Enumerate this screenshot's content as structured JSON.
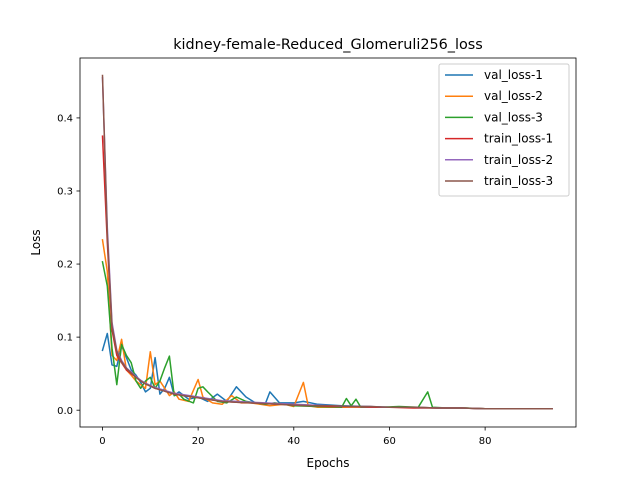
{
  "chart_data": {
    "type": "line",
    "title": "kidney-female-Reduced_Glomeruli256_loss",
    "xlabel": "Epochs",
    "ylabel": "Loss",
    "xlim": [
      -4.7,
      99
    ],
    "ylim": [
      -0.023,
      0.482
    ],
    "xticks": [
      0,
      20,
      40,
      60,
      80
    ],
    "yticks": [
      0.0,
      0.1,
      0.2,
      0.3,
      0.4
    ],
    "xtick_labels": [
      "0",
      "20",
      "40",
      "60",
      "80"
    ],
    "ytick_labels": [
      "0.0",
      "0.1",
      "0.2",
      "0.3",
      "0.4"
    ],
    "legend_position": "upper right",
    "grid": false,
    "series": [
      {
        "name": "val_loss-1",
        "color": "#1f77b4",
        "points": [
          [
            0,
            0.082
          ],
          [
            1,
            0.105
          ],
          [
            2,
            0.062
          ],
          [
            3,
            0.06
          ],
          [
            4,
            0.088
          ],
          [
            5,
            0.072
          ],
          [
            6,
            0.055
          ],
          [
            7,
            0.048
          ],
          [
            8,
            0.038
          ],
          [
            9,
            0.025
          ],
          [
            10,
            0.03
          ],
          [
            11,
            0.072
          ],
          [
            12,
            0.022
          ],
          [
            13,
            0.03
          ],
          [
            14,
            0.045
          ],
          [
            15,
            0.02
          ],
          [
            16,
            0.025
          ],
          [
            18,
            0.015
          ],
          [
            20,
            0.018
          ],
          [
            22,
            0.012
          ],
          [
            24,
            0.022
          ],
          [
            26,
            0.012
          ],
          [
            28,
            0.032
          ],
          [
            30,
            0.018
          ],
          [
            32,
            0.01
          ],
          [
            34,
            0.008
          ],
          [
            35,
            0.025
          ],
          [
            37,
            0.01
          ],
          [
            40,
            0.01
          ],
          [
            42,
            0.012
          ],
          [
            45,
            0.008
          ],
          [
            50,
            0.006
          ],
          [
            55,
            0.005
          ],
          [
            60,
            0.004
          ],
          [
            65,
            0.004
          ],
          [
            70,
            0.003
          ],
          [
            75,
            0.003
          ],
          [
            80,
            0.002
          ],
          [
            85,
            0.002
          ],
          [
            90,
            0.002
          ],
          [
            94,
            0.002
          ]
        ]
      },
      {
        "name": "val_loss-2",
        "color": "#ff7f0e",
        "points": [
          [
            0,
            0.233
          ],
          [
            1,
            0.19
          ],
          [
            2,
            0.075
          ],
          [
            3,
            0.068
          ],
          [
            4,
            0.097
          ],
          [
            5,
            0.055
          ],
          [
            6,
            0.048
          ],
          [
            7,
            0.04
          ],
          [
            8,
            0.035
          ],
          [
            9,
            0.03
          ],
          [
            10,
            0.08
          ],
          [
            11,
            0.035
          ],
          [
            12,
            0.04
          ],
          [
            13,
            0.03
          ],
          [
            14,
            0.02
          ],
          [
            15,
            0.025
          ],
          [
            16,
            0.015
          ],
          [
            18,
            0.012
          ],
          [
            20,
            0.042
          ],
          [
            21,
            0.018
          ],
          [
            23,
            0.01
          ],
          [
            25,
            0.008
          ],
          [
            27,
            0.02
          ],
          [
            29,
            0.01
          ],
          [
            31,
            0.01
          ],
          [
            33,
            0.008
          ],
          [
            35,
            0.006
          ],
          [
            38,
            0.008
          ],
          [
            40,
            0.005
          ],
          [
            42,
            0.038
          ],
          [
            43,
            0.006
          ],
          [
            45,
            0.004
          ],
          [
            50,
            0.004
          ],
          [
            55,
            0.004
          ],
          [
            60,
            0.004
          ],
          [
            65,
            0.004
          ],
          [
            70,
            0.003
          ],
          [
            75,
            0.003
          ],
          [
            80,
            0.002
          ],
          [
            85,
            0.002
          ],
          [
            90,
            0.002
          ],
          [
            94,
            0.002
          ]
        ]
      },
      {
        "name": "val_loss-3",
        "color": "#2ca02c",
        "points": [
          [
            0,
            0.203
          ],
          [
            1,
            0.17
          ],
          [
            2,
            0.085
          ],
          [
            3,
            0.035
          ],
          [
            4,
            0.09
          ],
          [
            5,
            0.075
          ],
          [
            6,
            0.065
          ],
          [
            7,
            0.04
          ],
          [
            8,
            0.03
          ],
          [
            9,
            0.04
          ],
          [
            10,
            0.045
          ],
          [
            11,
            0.03
          ],
          [
            12,
            0.04
          ],
          [
            13,
            0.058
          ],
          [
            14,
            0.074
          ],
          [
            15,
            0.02
          ],
          [
            16,
            0.022
          ],
          [
            17,
            0.015
          ],
          [
            19,
            0.01
          ],
          [
            20,
            0.03
          ],
          [
            21,
            0.032
          ],
          [
            22,
            0.025
          ],
          [
            24,
            0.012
          ],
          [
            26,
            0.01
          ],
          [
            28,
            0.018
          ],
          [
            30,
            0.012
          ],
          [
            32,
            0.01
          ],
          [
            34,
            0.008
          ],
          [
            36,
            0.01
          ],
          [
            40,
            0.006
          ],
          [
            45,
            0.005
          ],
          [
            50,
            0.004
          ],
          [
            51,
            0.016
          ],
          [
            52,
            0.006
          ],
          [
            53,
            0.015
          ],
          [
            54,
            0.004
          ],
          [
            58,
            0.004
          ],
          [
            62,
            0.005
          ],
          [
            66,
            0.004
          ],
          [
            68,
            0.025
          ],
          [
            69,
            0.004
          ],
          [
            72,
            0.003
          ],
          [
            76,
            0.003
          ],
          [
            80,
            0.002
          ],
          [
            85,
            0.002
          ],
          [
            90,
            0.002
          ],
          [
            94,
            0.002
          ]
        ]
      },
      {
        "name": "train_loss-1",
        "color": "#d62728",
        "points": [
          [
            0,
            0.375
          ],
          [
            1,
            0.23
          ],
          [
            2,
            0.11
          ],
          [
            3,
            0.075
          ],
          [
            4,
            0.065
          ],
          [
            5,
            0.055
          ],
          [
            6,
            0.05
          ],
          [
            7,
            0.045
          ],
          [
            8,
            0.04
          ],
          [
            9,
            0.036
          ],
          [
            10,
            0.033
          ],
          [
            11,
            0.03
          ],
          [
            12,
            0.028
          ],
          [
            13,
            0.026
          ],
          [
            14,
            0.024
          ],
          [
            15,
            0.022
          ],
          [
            17,
            0.02
          ],
          [
            19,
            0.018
          ],
          [
            21,
            0.016
          ],
          [
            23,
            0.014
          ],
          [
            25,
            0.012
          ],
          [
            28,
            0.011
          ],
          [
            31,
            0.01
          ],
          [
            34,
            0.009
          ],
          [
            37,
            0.008
          ],
          [
            40,
            0.007
          ],
          [
            44,
            0.006
          ],
          [
            48,
            0.005
          ],
          [
            52,
            0.005
          ],
          [
            56,
            0.004
          ],
          [
            60,
            0.004
          ],
          [
            65,
            0.003
          ],
          [
            70,
            0.003
          ],
          [
            75,
            0.003
          ],
          [
            80,
            0.002
          ],
          [
            85,
            0.002
          ],
          [
            90,
            0.002
          ],
          [
            94,
            0.002
          ]
        ]
      },
      {
        "name": "train_loss-2",
        "color": "#9467bd",
        "points": [
          [
            0,
            0.455
          ],
          [
            1,
            0.25
          ],
          [
            2,
            0.12
          ],
          [
            3,
            0.082
          ],
          [
            4,
            0.068
          ],
          [
            5,
            0.058
          ],
          [
            6,
            0.052
          ],
          [
            7,
            0.046
          ],
          [
            8,
            0.041
          ],
          [
            9,
            0.037
          ],
          [
            10,
            0.034
          ],
          [
            11,
            0.031
          ],
          [
            12,
            0.029
          ],
          [
            13,
            0.027
          ],
          [
            14,
            0.025
          ],
          [
            15,
            0.023
          ],
          [
            17,
            0.021
          ],
          [
            19,
            0.019
          ],
          [
            21,
            0.017
          ],
          [
            23,
            0.015
          ],
          [
            25,
            0.013
          ],
          [
            28,
            0.012
          ],
          [
            31,
            0.011
          ],
          [
            34,
            0.01
          ],
          [
            37,
            0.009
          ],
          [
            40,
            0.008
          ],
          [
            44,
            0.007
          ],
          [
            48,
            0.006
          ],
          [
            52,
            0.005
          ],
          [
            56,
            0.005
          ],
          [
            60,
            0.004
          ],
          [
            65,
            0.004
          ],
          [
            70,
            0.003
          ],
          [
            75,
            0.003
          ],
          [
            80,
            0.002
          ],
          [
            85,
            0.002
          ],
          [
            90,
            0.002
          ],
          [
            94,
            0.002
          ]
        ]
      },
      {
        "name": "train_loss-3",
        "color": "#8c564b",
        "points": [
          [
            0,
            0.458
          ],
          [
            1,
            0.24
          ],
          [
            2,
            0.115
          ],
          [
            3,
            0.08
          ],
          [
            4,
            0.066
          ],
          [
            5,
            0.057
          ],
          [
            6,
            0.051
          ],
          [
            7,
            0.045
          ],
          [
            8,
            0.04
          ],
          [
            9,
            0.036
          ],
          [
            10,
            0.033
          ],
          [
            11,
            0.03
          ],
          [
            12,
            0.028
          ],
          [
            13,
            0.026
          ],
          [
            14,
            0.024
          ],
          [
            15,
            0.022
          ],
          [
            17,
            0.02
          ],
          [
            19,
            0.018
          ],
          [
            21,
            0.016
          ],
          [
            23,
            0.014
          ],
          [
            25,
            0.012
          ],
          [
            28,
            0.011
          ],
          [
            31,
            0.01
          ],
          [
            34,
            0.009
          ],
          [
            37,
            0.008
          ],
          [
            40,
            0.007
          ],
          [
            44,
            0.006
          ],
          [
            48,
            0.006
          ],
          [
            52,
            0.005
          ],
          [
            56,
            0.005
          ],
          [
            60,
            0.004
          ],
          [
            65,
            0.004
          ],
          [
            70,
            0.003
          ],
          [
            75,
            0.003
          ],
          [
            80,
            0.002
          ],
          [
            85,
            0.002
          ],
          [
            90,
            0.002
          ],
          [
            94,
            0.002
          ]
        ]
      }
    ]
  }
}
